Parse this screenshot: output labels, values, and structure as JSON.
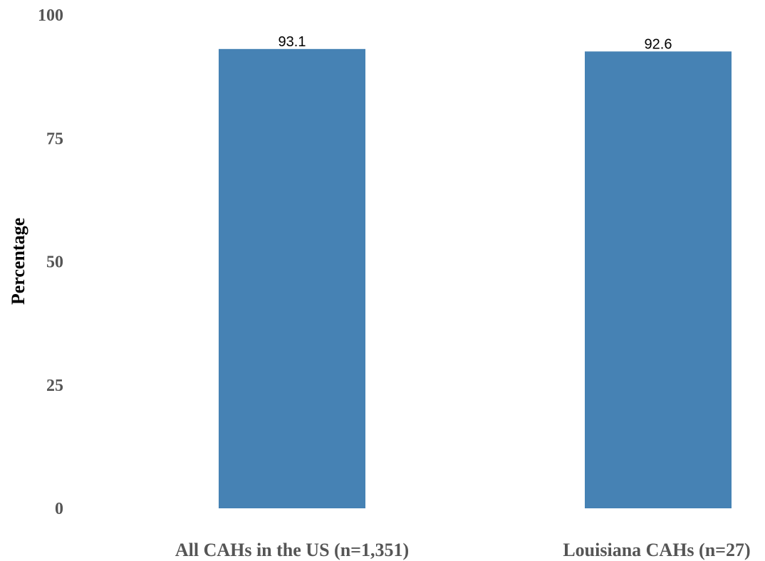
{
  "chart_data": {
    "type": "bar",
    "categories": [
      "All CAHs in the US (n=1,351)",
      "Louisiana CAHs (n=27)"
    ],
    "values": [
      93.1,
      92.6
    ],
    "value_labels": [
      "93.1",
      "92.6"
    ],
    "title": "",
    "xlabel": "",
    "ylabel": "Percentage",
    "ylim": [
      0,
      100
    ],
    "yticks": [
      0,
      25,
      50,
      75,
      100
    ],
    "ytick_labels": [
      "0",
      "25",
      "50",
      "75",
      "100"
    ],
    "grid": false,
    "legend": "none",
    "bar_color": "#4682b4"
  }
}
